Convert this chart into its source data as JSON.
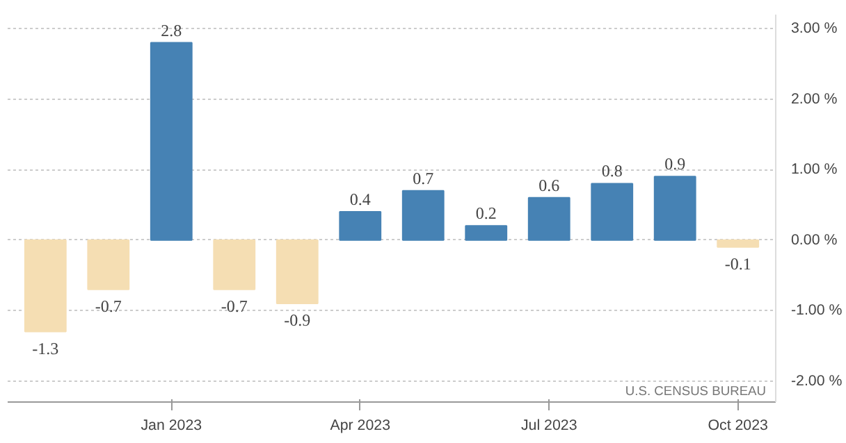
{
  "chart_data": {
    "type": "bar",
    "categories": [
      null,
      null,
      "Jan 2023",
      null,
      null,
      "Apr 2023",
      null,
      null,
      "Jul 2023",
      null,
      null,
      "Oct 2023"
    ],
    "values": [
      -1.3,
      -0.7,
      2.8,
      -0.7,
      -0.9,
      0.4,
      0.7,
      0.2,
      0.6,
      0.8,
      0.9,
      -0.1
    ],
    "colors": [
      "#f5deb3",
      "#f5deb3",
      "#4682b4",
      "#f5deb3",
      "#f5deb3",
      "#4682b4",
      "#4682b4",
      "#4682b4",
      "#4682b4",
      "#4682b4",
      "#4682b4",
      "#f5deb3"
    ],
    "data_labels": true,
    "ylim": [
      -2.3,
      3.2
    ],
    "yticks": [
      {
        "value": -2,
        "label": "-2.00 %"
      },
      {
        "value": -1,
        "label": "-1.00 %"
      },
      {
        "value": 0,
        "label": "0.00 %"
      },
      {
        "value": 1,
        "label": "1.00 %"
      },
      {
        "value": 2,
        "label": "2.00 %"
      },
      {
        "value": 3,
        "label": "3.00 %"
      }
    ],
    "grid": "y",
    "annotations": [
      "U.S. CENSUS BUREAU"
    ]
  }
}
